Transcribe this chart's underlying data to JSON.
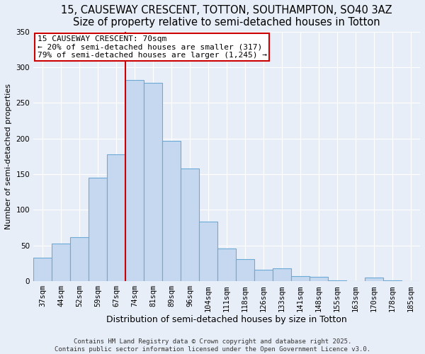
{
  "title": "15, CAUSEWAY CRESCENT, TOTTON, SOUTHAMPTON, SO40 3AZ",
  "subtitle": "Size of property relative to semi-detached houses in Totton",
  "xlabel": "Distribution of semi-detached houses by size in Totton",
  "ylabel": "Number of semi-detached properties",
  "categories": [
    "37sqm",
    "44sqm",
    "52sqm",
    "59sqm",
    "67sqm",
    "74sqm",
    "81sqm",
    "89sqm",
    "96sqm",
    "104sqm",
    "111sqm",
    "118sqm",
    "126sqm",
    "133sqm",
    "141sqm",
    "148sqm",
    "155sqm",
    "163sqm",
    "170sqm",
    "178sqm",
    "185sqm"
  ],
  "values": [
    33,
    53,
    62,
    145,
    178,
    282,
    278,
    197,
    158,
    84,
    46,
    31,
    16,
    18,
    7,
    6,
    1,
    0,
    5,
    1,
    0
  ],
  "bar_color": "#c5d8f0",
  "bar_edge_color": "#6aaad4",
  "vline_x_index": 4.5,
  "vline_color": "#cc0000",
  "annotation_title": "15 CAUSEWAY CRESCENT: 70sqm",
  "annotation_line2": "← 20% of semi-detached houses are smaller (317)",
  "annotation_line3": "79% of semi-detached houses are larger (1,245) →",
  "annotation_box_color": "#ffffff",
  "annotation_box_edge": "#cc0000",
  "ylim": [
    0,
    350
  ],
  "yticks": [
    0,
    50,
    100,
    150,
    200,
    250,
    300,
    350
  ],
  "background_color": "#e8eef8",
  "footer_line1": "Contains HM Land Registry data © Crown copyright and database right 2025.",
  "footer_line2": "Contains public sector information licensed under the Open Government Licence v3.0.",
  "title_fontsize": 10.5,
  "subtitle_fontsize": 9.5,
  "xlabel_fontsize": 9,
  "ylabel_fontsize": 8,
  "tick_fontsize": 7.5,
  "footer_fontsize": 6.5,
  "annot_fontsize": 8
}
